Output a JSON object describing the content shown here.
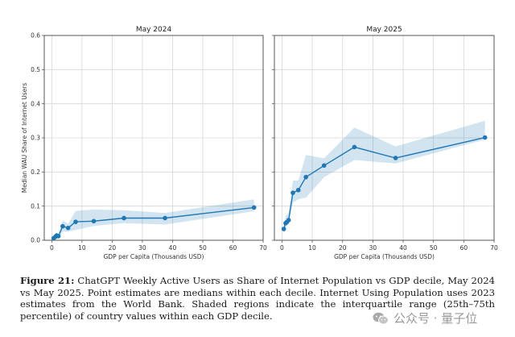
{
  "chart_data": [
    {
      "type": "line",
      "title": "May 2024",
      "xlabel": "GDP per Capita (Thousands USD)",
      "ylabel": "Median WAU Share of Internet Users",
      "xlim": [
        -2.5,
        70
      ],
      "ylim": [
        0,
        0.6
      ],
      "xticks": [
        0,
        10,
        20,
        30,
        40,
        50,
        60,
        70
      ],
      "yticks": [
        0.0,
        0.1,
        0.2,
        0.3,
        0.4,
        0.5,
        0.6
      ],
      "ytick_labels": [
        "0.0",
        "0.1",
        "0.2",
        "0.3",
        "0.4",
        "0.5",
        "0.6"
      ],
      "grid": true,
      "series": [
        {
          "name": "Median",
          "color": "#1f77b4",
          "x": [
            0.6,
            1.2,
            1.6,
            2.2,
            3.6,
            5.4,
            7.9,
            13.9,
            23.9,
            37.5,
            67.0
          ],
          "y": [
            0.006,
            0.01,
            0.014,
            0.012,
            0.041,
            0.036,
            0.054,
            0.056,
            0.065,
            0.065,
            0.096
          ],
          "iqr_low": [
            0.002,
            0.004,
            0.007,
            0.006,
            0.025,
            0.025,
            0.03,
            0.042,
            0.05,
            0.046,
            0.085
          ],
          "iqr_high": [
            0.01,
            0.016,
            0.02,
            0.018,
            0.058,
            0.048,
            0.086,
            0.09,
            0.088,
            0.08,
            0.12
          ]
        }
      ]
    },
    {
      "type": "line",
      "title": "May 2025",
      "xlabel": "GDP per Capita (Thousands USD)",
      "ylabel": "",
      "xlim": [
        -2.5,
        70
      ],
      "ylim": [
        0,
        0.6
      ],
      "xticks": [
        0,
        10,
        20,
        30,
        40,
        50,
        60,
        70
      ],
      "yticks": [
        0.0,
        0.1,
        0.2,
        0.3,
        0.4,
        0.5,
        0.6
      ],
      "grid": true,
      "series": [
        {
          "name": "Median",
          "color": "#1f77b4",
          "x": [
            0.6,
            1.2,
            1.6,
            2.2,
            3.6,
            5.4,
            7.9,
            13.9,
            23.9,
            37.5,
            67.0
          ],
          "y": [
            0.033,
            0.05,
            0.053,
            0.059,
            0.139,
            0.147,
            0.185,
            0.219,
            0.273,
            0.241,
            0.301
          ],
          "iqr_low": [
            0.025,
            0.04,
            0.045,
            0.05,
            0.11,
            0.12,
            0.125,
            0.185,
            0.235,
            0.225,
            0.295
          ],
          "iqr_high": [
            0.045,
            0.07,
            0.075,
            0.08,
            0.175,
            0.175,
            0.25,
            0.24,
            0.33,
            0.275,
            0.35
          ]
        }
      ]
    }
  ],
  "caption": {
    "label": "Figure 21:",
    "text": "ChatGPT Weekly Active Users as Share of Internet Population vs GDP decile, May 2024 vs May 2025. Point estimates are medians within each decile. Internet Using Population uses 2023 estimates from the World Bank. Shaded regions indicate the interquartile range (25th–75th percentile) of country values within each GDP decile."
  },
  "watermark": {
    "icon": "wechat-icon",
    "text": "公众号 · 量子位"
  }
}
